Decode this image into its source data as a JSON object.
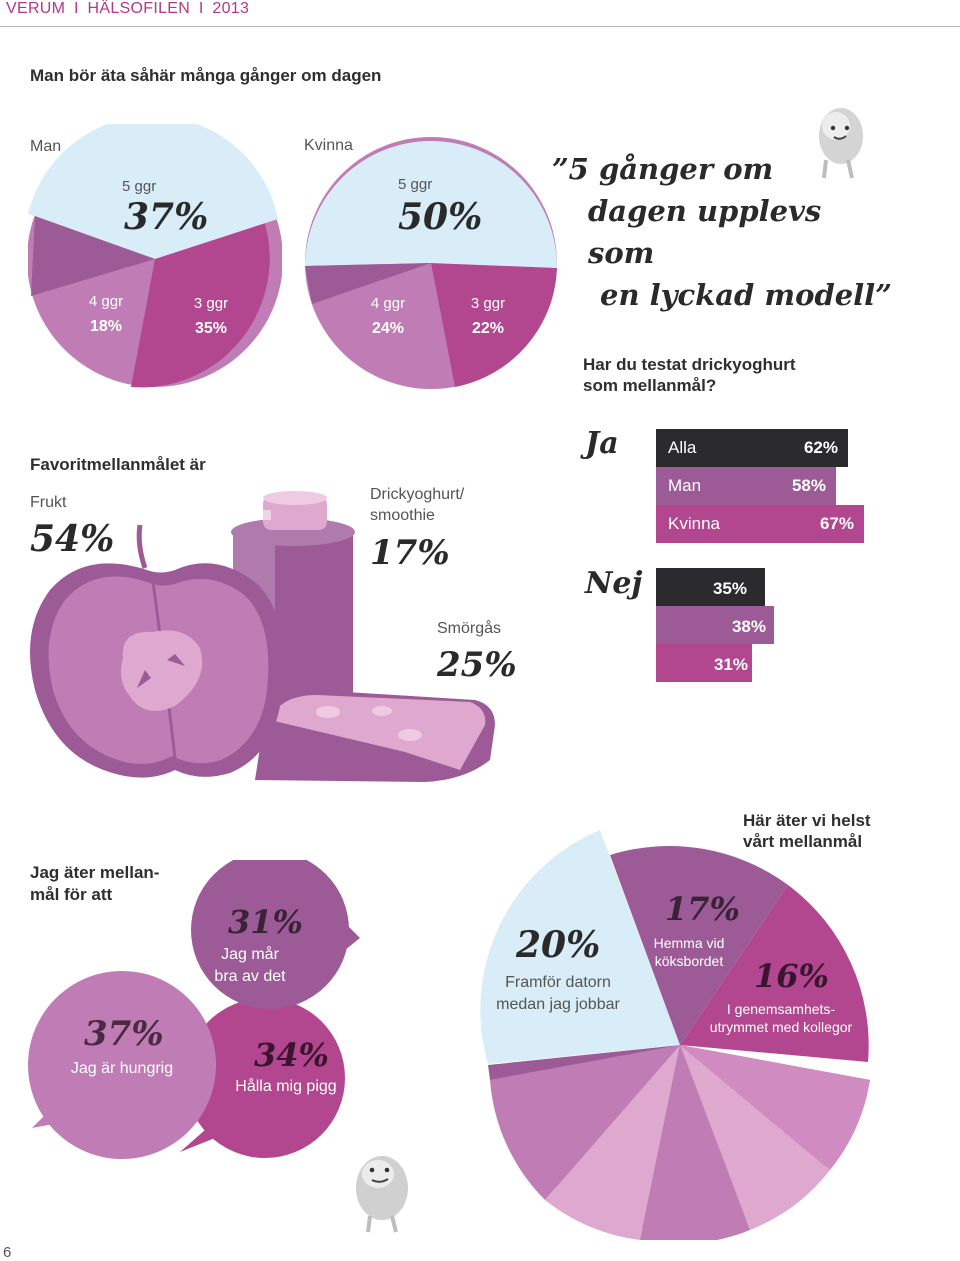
{
  "header": {
    "publisher": "VERUM",
    "sep": "I",
    "publication": "HÄLSOFILEN",
    "year": "2013"
  },
  "section1": {
    "title": "Man bör äta såhär många gånger om dagen",
    "man": {
      "label": "Man",
      "slices": [
        {
          "name": "5 ggr",
          "value": "37%"
        },
        {
          "name": "4 ggr",
          "value": "18%"
        },
        {
          "name": "3 ggr",
          "value": "35%"
        }
      ]
    },
    "kvinna": {
      "label": "Kvinna",
      "slices": [
        {
          "name": "5 ggr",
          "value": "50%"
        },
        {
          "name": "4 ggr",
          "value": "24%"
        },
        {
          "name": "3 ggr",
          "value": "22%"
        }
      ]
    },
    "quote": {
      "line1": "”5 gånger om",
      "line2": "dagen upplevs som",
      "line3": "en lyckad modell”"
    }
  },
  "section2": {
    "title": "Favoritmellanmålet är",
    "items": [
      {
        "label": "Frukt",
        "value": "54%"
      },
      {
        "label_line1": "Drickyoghurt/",
        "label_line2": "smoothie",
        "value": "17%"
      },
      {
        "label": "Smörgås",
        "value": "25%"
      }
    ]
  },
  "section3": {
    "question_line1": "Har du testat drickyoghurt",
    "question_line2": "som mellanmål?",
    "ja": "Ja",
    "nej": "Nej",
    "ja_bars": [
      {
        "name": "Alla",
        "value": "62%",
        "pct": 62,
        "color": "#2b2a2c"
      },
      {
        "name": "Man",
        "value": "58%",
        "pct": 58,
        "color": "#9c5b96"
      },
      {
        "name": "Kvinna",
        "value": "67%",
        "pct": 67,
        "color": "#b2468f"
      }
    ],
    "nej_bars": [
      {
        "value": "35%",
        "pct": 35,
        "color": "#2b2a2c"
      },
      {
        "value": "38%",
        "pct": 38,
        "color": "#9c5b96"
      },
      {
        "value": "31%",
        "pct": 31,
        "color": "#b2468f"
      }
    ]
  },
  "section4": {
    "title_line1": "Jag äter mellan-",
    "title_line2": "mål för att",
    "bubbles": [
      {
        "value": "37%",
        "label": "Jag är hungrig"
      },
      {
        "value": "31%",
        "label_line1": "Jag mår",
        "label_line2": "bra av det"
      },
      {
        "value": "34%",
        "label": "Hålla mig pigg"
      }
    ]
  },
  "section5": {
    "title_line1": "Här äter vi helst",
    "title_line2": "vårt mellanmål",
    "slices": [
      {
        "value": "20%",
        "label_line1": "Framför datorn",
        "label_line2": "medan jag jobbar"
      },
      {
        "value": "17%",
        "label_line1": "Hemma vid",
        "label_line2": "köksbordet"
      },
      {
        "value": "16%",
        "label_line1": "I genemsamhets-",
        "label_line2": "utrymmet med kollegor"
      }
    ]
  },
  "colors": {
    "light_blue": "#d9edf8",
    "magenta": "#b2468f",
    "mauve": "#9c5b96",
    "lilac": "#c07db5",
    "pink": "#dfa8cf",
    "dark": "#2b2a2c"
  },
  "page_number": "6"
}
